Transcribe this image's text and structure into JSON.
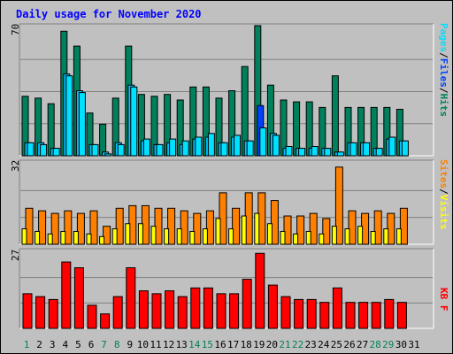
{
  "title": "Daily usage for November 2020",
  "colors": {
    "hits": "#00805c",
    "files": "#00c0ff",
    "pages": "#00e0ff",
    "visits": "#ffff00",
    "sites": "#ff8000",
    "kbytes": "#ff0000",
    "today": "#0040ff",
    "grid": "#808080",
    "background": "#c0c0c0"
  },
  "chart_data": [
    {
      "type": "bar",
      "name": "hits-files-pages",
      "ymax_label": "70",
      "ymax": 70,
      "legend": [
        "Pages",
        "/",
        "Files",
        "/",
        "Hits"
      ],
      "categories": [
        "1",
        "2",
        "3",
        "4",
        "5",
        "6",
        "7",
        "8",
        "9",
        "10",
        "11",
        "12",
        "13",
        "14",
        "15",
        "16",
        "17",
        "18",
        "19",
        "20",
        "21",
        "22",
        "23",
        "24",
        "25",
        "26",
        "27",
        "28",
        "29",
        "30",
        "31"
      ],
      "series": [
        {
          "name": "Hits",
          "values": [
            32,
            31,
            28,
            67,
            59,
            23,
            17,
            31,
            59,
            33,
            32,
            33,
            30,
            37,
            37,
            31,
            35,
            48,
            70,
            38,
            30,
            29,
            29,
            26,
            43,
            26,
            26,
            26,
            26,
            25,
            0
          ]
        },
        {
          "name": "Files",
          "values": [
            7,
            7,
            4,
            44,
            35,
            6,
            2,
            7,
            38,
            8,
            6,
            7,
            6,
            9,
            10,
            7,
            10,
            8,
            27,
            12,
            4,
            4,
            4,
            4,
            2,
            7,
            7,
            4,
            9,
            8,
            0
          ]
        },
        {
          "name": "Pages",
          "values": [
            7,
            6,
            4,
            43,
            34,
            6,
            1,
            6,
            37,
            9,
            6,
            9,
            8,
            10,
            12,
            7,
            11,
            8,
            15,
            11,
            5,
            4,
            5,
            4,
            2,
            7,
            7,
            4,
            10,
            8,
            0
          ]
        }
      ]
    },
    {
      "type": "bar",
      "name": "sites-visits",
      "ymax_label": "32",
      "ymax": 32,
      "legend": [
        "Sites",
        "/",
        "Visits"
      ],
      "categories": [
        "1",
        "2",
        "3",
        "4",
        "5",
        "6",
        "7",
        "8",
        "9",
        "10",
        "11",
        "12",
        "13",
        "14",
        "15",
        "16",
        "17",
        "18",
        "19",
        "20",
        "21",
        "22",
        "23",
        "24",
        "25",
        "26",
        "27",
        "28",
        "29",
        "30",
        "31"
      ],
      "series": [
        {
          "name": "Sites",
          "values": [
            14,
            13,
            12,
            13,
            12,
            13,
            7,
            14,
            15,
            15,
            14,
            14,
            13,
            12,
            13,
            20,
            14,
            20,
            20,
            17,
            11,
            11,
            12,
            10,
            30,
            13,
            12,
            13,
            12,
            14,
            0
          ]
        },
        {
          "name": "Visits",
          "values": [
            6,
            5,
            4,
            5,
            5,
            4,
            3,
            6,
            8,
            8,
            7,
            6,
            6,
            5,
            6,
            10,
            6,
            11,
            12,
            8,
            5,
            4,
            5,
            4,
            7,
            6,
            7,
            5,
            6,
            6,
            0
          ]
        }
      ]
    },
    {
      "type": "bar",
      "name": "kbytes",
      "ymax_label": "27",
      "ymax": 27,
      "legend": [
        "KB F"
      ],
      "categories": [
        "1",
        "2",
        "3",
        "4",
        "5",
        "6",
        "7",
        "8",
        "9",
        "10",
        "11",
        "12",
        "13",
        "14",
        "15",
        "16",
        "17",
        "18",
        "19",
        "20",
        "21",
        "22",
        "23",
        "24",
        "25",
        "26",
        "27",
        "28",
        "29",
        "30",
        "31"
      ],
      "series": [
        {
          "name": "KB F",
          "values": [
            12,
            11,
            10,
            23,
            21,
            8,
            5,
            11,
            21,
            13,
            12,
            13,
            11,
            14,
            14,
            12,
            12,
            17,
            26,
            15,
            11,
            10,
            10,
            9,
            14,
            9,
            9,
            9,
            10,
            9,
            0
          ]
        }
      ]
    }
  ],
  "x_labels": {
    "days": [
      "1",
      "2",
      "3",
      "4",
      "5",
      "6",
      "7",
      "8",
      "9",
      "10",
      "11",
      "12",
      "13",
      "14",
      "15",
      "16",
      "17",
      "18",
      "19",
      "20",
      "21",
      "22",
      "23",
      "24",
      "25",
      "26",
      "27",
      "28",
      "29",
      "30",
      "31"
    ],
    "weekend_days": [
      "1",
      "7",
      "8",
      "14",
      "15",
      "21",
      "22",
      "28",
      "29"
    ],
    "weekend_color": "#00805c",
    "weekday_color": "#000000"
  }
}
